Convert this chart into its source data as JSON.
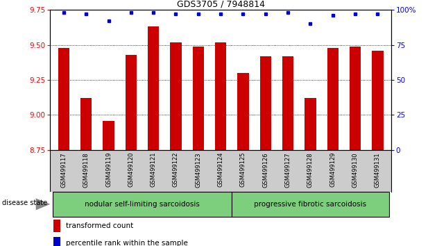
{
  "title": "GDS3705 / 7948814",
  "samples": [
    "GSM499117",
    "GSM499118",
    "GSM499119",
    "GSM499120",
    "GSM499121",
    "GSM499122",
    "GSM499123",
    "GSM499124",
    "GSM499125",
    "GSM499126",
    "GSM499127",
    "GSM499128",
    "GSM499129",
    "GSM499130",
    "GSM499131"
  ],
  "bar_values": [
    9.48,
    9.12,
    8.96,
    9.43,
    9.63,
    9.52,
    9.49,
    9.52,
    9.3,
    9.42,
    9.42,
    9.12,
    9.48,
    9.49,
    9.46
  ],
  "percentile_values": [
    98,
    97,
    92,
    98,
    98,
    97,
    97,
    97,
    97,
    97,
    98,
    90,
    96,
    97,
    97
  ],
  "bar_color": "#cc0000",
  "dot_color": "#0000cc",
  "ylim_left": [
    8.75,
    9.75
  ],
  "ylim_right": [
    0,
    100
  ],
  "yticks_left": [
    8.75,
    9.0,
    9.25,
    9.5,
    9.75
  ],
  "yticks_right": [
    0,
    25,
    50,
    75,
    100
  ],
  "grid_lines": [
    9.0,
    9.25,
    9.5
  ],
  "nodular_n": 8,
  "progressive_n": 7,
  "nodular_label": "nodular self-limiting sarcoidosis",
  "progressive_label": "progressive fibrotic sarcoidosis",
  "disease_state_label": "disease state",
  "legend_bar_label": "transformed count",
  "legend_dot_label": "percentile rank within the sample",
  "group_bg_color": "#7dce7d",
  "tick_area_bg": "#cccccc",
  "bar_bottom": 8.75
}
